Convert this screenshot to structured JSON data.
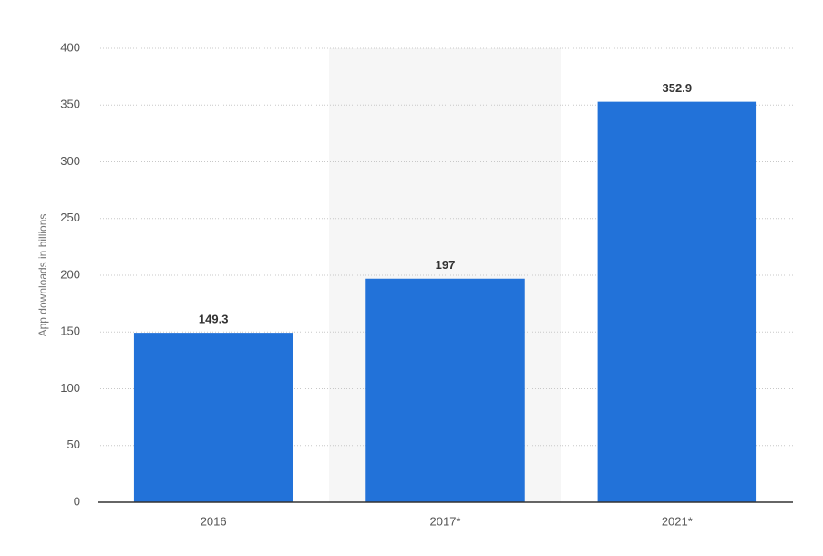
{
  "chart_data": {
    "type": "bar",
    "y_label": "App downloads in billions",
    "categories": [
      "2016",
      "2017*",
      "2021*"
    ],
    "values": [
      149.3,
      197,
      352.9
    ],
    "color": "#2272d9",
    "ylim": [
      0,
      400
    ],
    "yticks": [
      0,
      50,
      100,
      150,
      200,
      250,
      300,
      350,
      400
    ],
    "grid": true
  }
}
